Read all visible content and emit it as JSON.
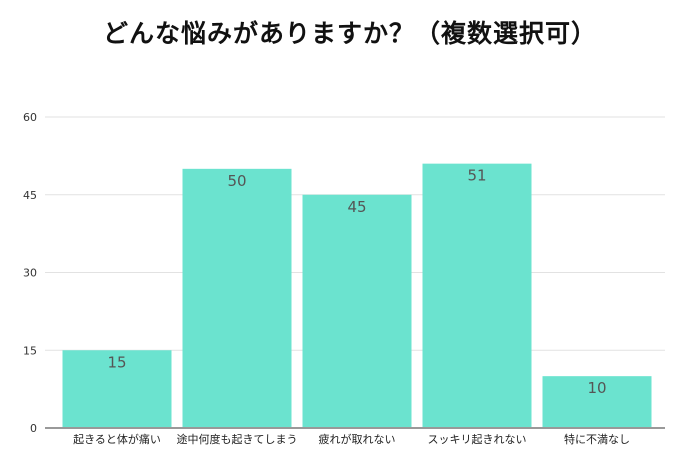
{
  "chart_data": {
    "type": "bar",
    "title": "どんな悩みがありますか？（複数選択可）",
    "categories": [
      "起きると体が痛い",
      "途中何度も起きてしまう",
      "疲れが取れない",
      "スッキリ起きれない",
      "特に不満なし"
    ],
    "values": [
      15,
      50,
      45,
      51,
      10
    ],
    "ylim": [
      0,
      60
    ],
    "yticks": [
      0,
      15,
      30,
      45,
      60
    ],
    "grid": true,
    "xlabel": "",
    "ylabel": "",
    "bar_color": "#6be3cf"
  }
}
